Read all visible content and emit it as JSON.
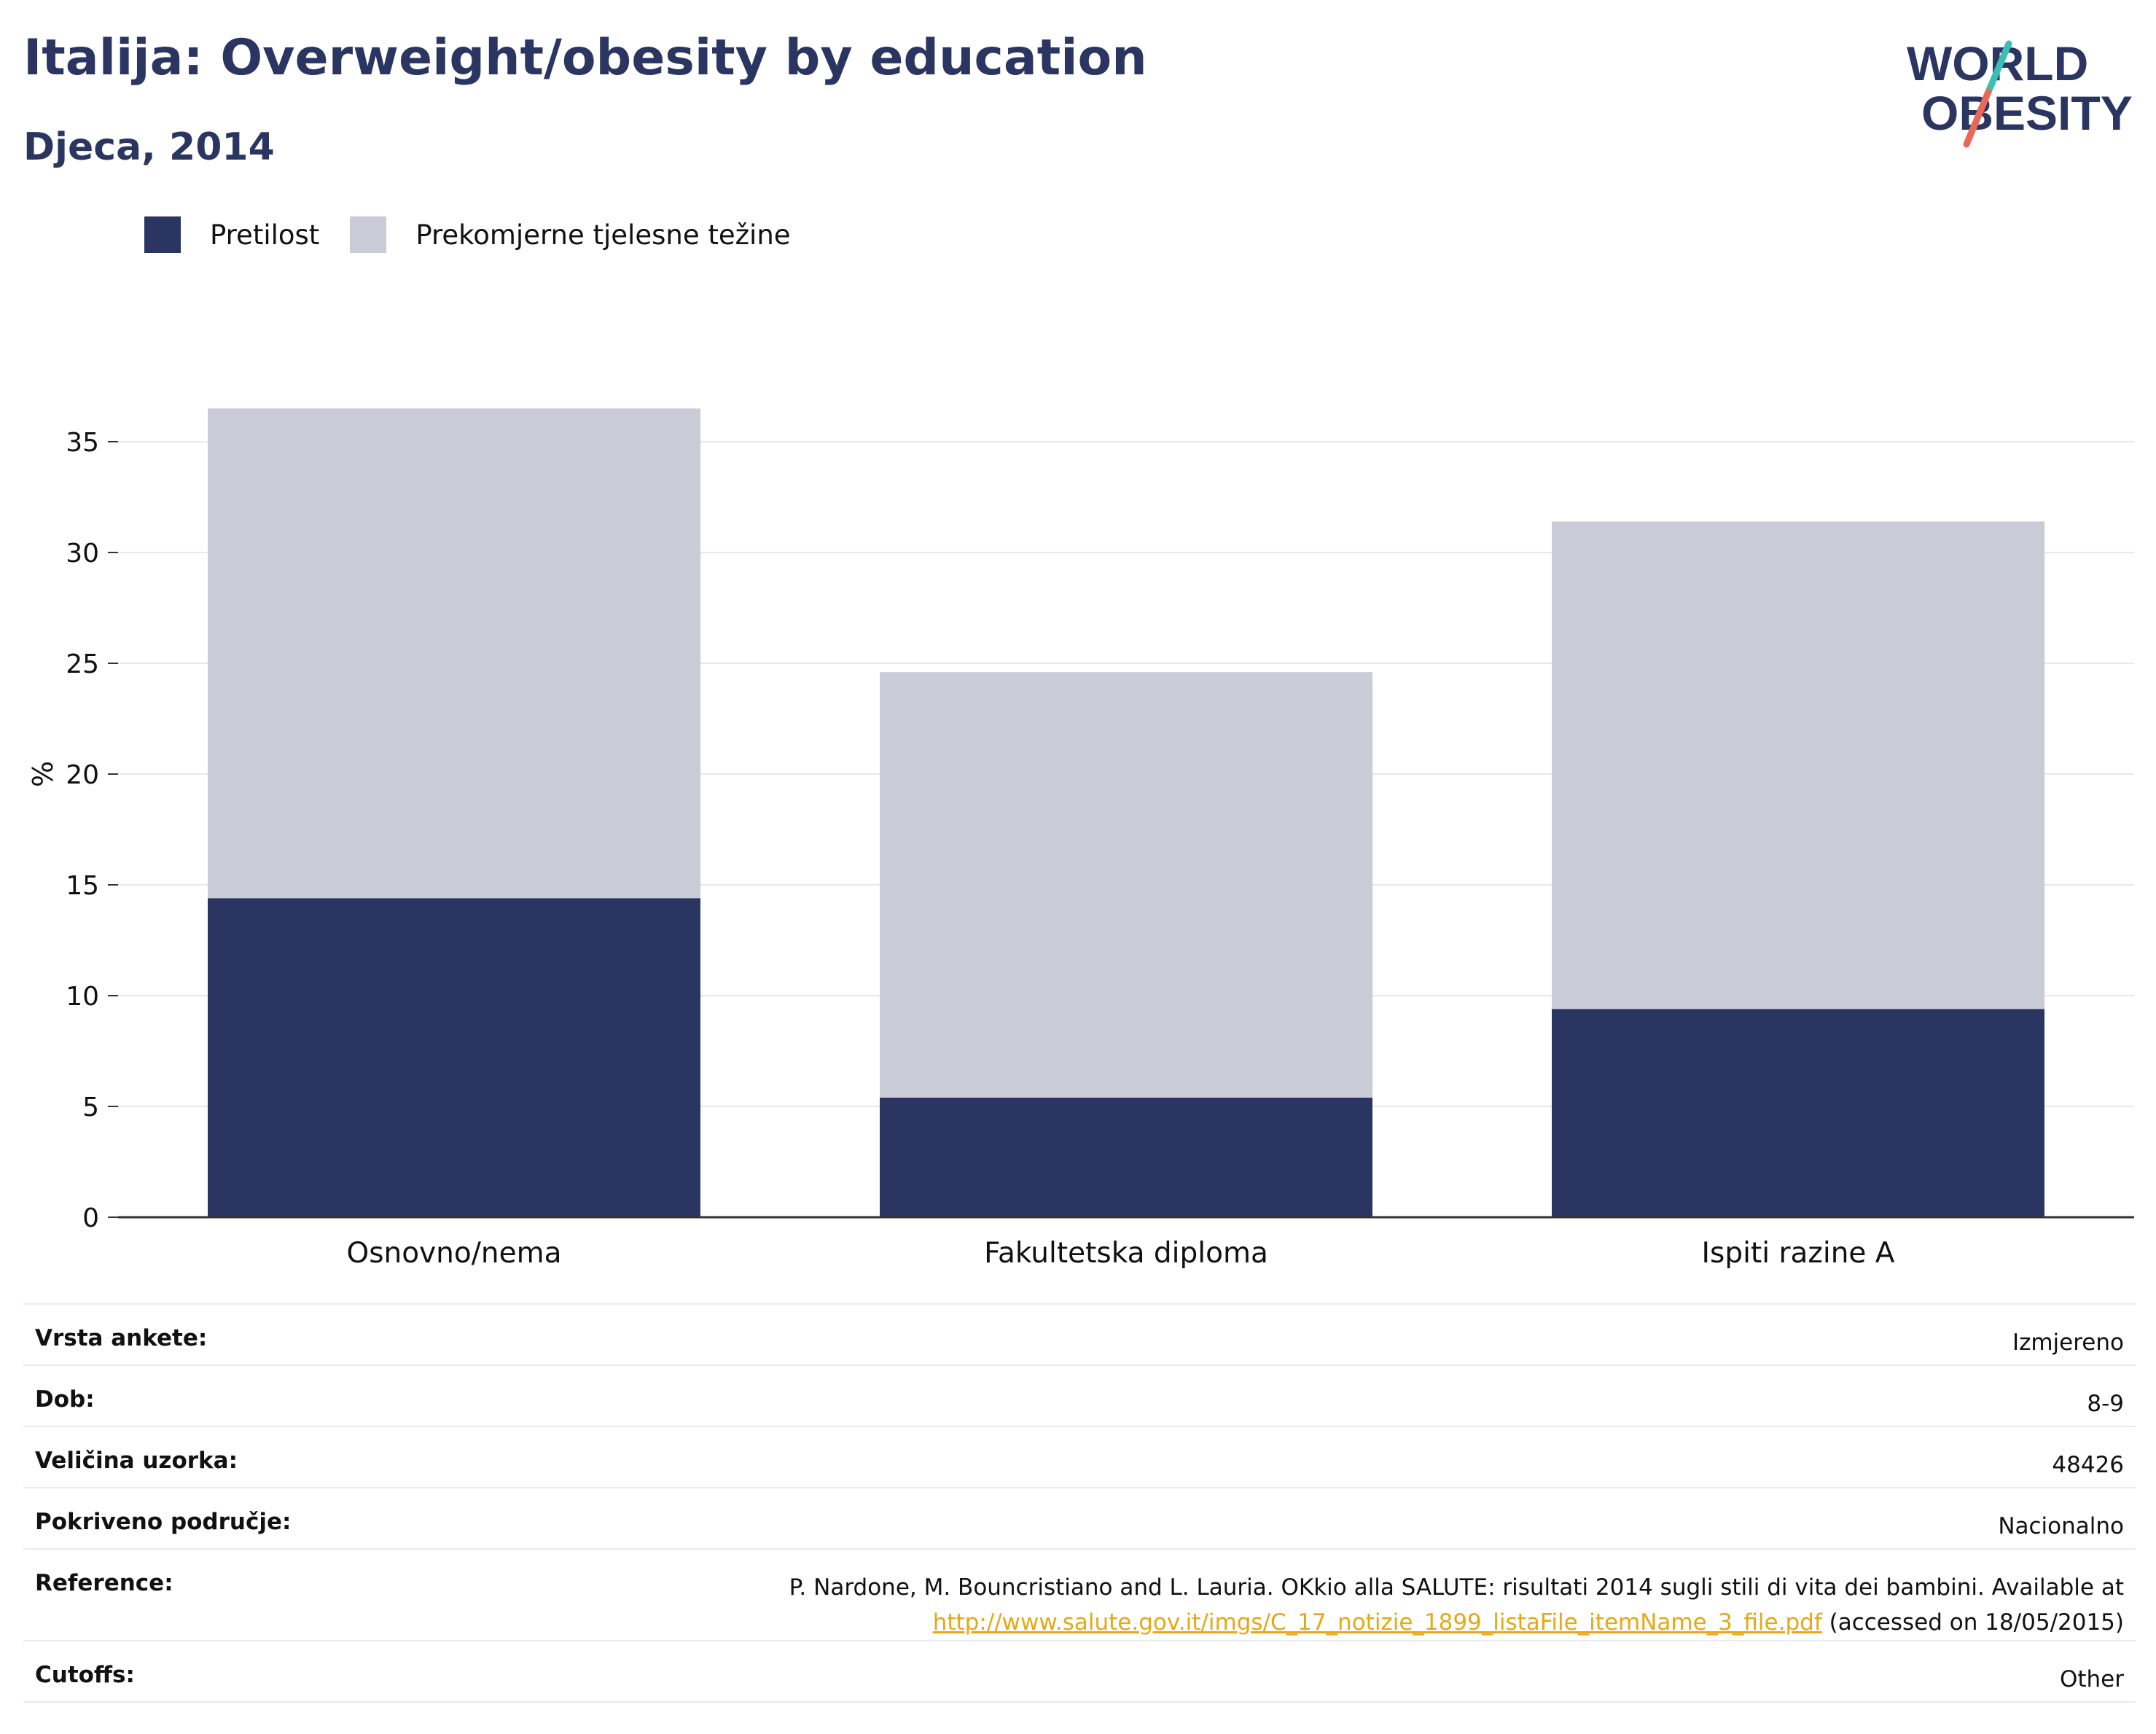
{
  "header": {
    "title": "Italija: Overweight/obesity by education",
    "subtitle": "Djeca, 2014"
  },
  "logo": {
    "line1": "WORLD",
    "line2": "OBESITY"
  },
  "colors": {
    "obesity": "#2a3661",
    "overweight": "#c9cbd6",
    "title": "#2a3661",
    "link": "#e6a817",
    "logo_teal": "#3bbfb4",
    "logo_coral": "#e8685a"
  },
  "chart_data": {
    "type": "bar",
    "stacked": true,
    "categories": [
      "Osnovno/nema",
      "Fakultetska diploma",
      "Ispiti razine A"
    ],
    "series": [
      {
        "name": "Pretilost",
        "color": "#2a3661",
        "values": [
          14.4,
          5.4,
          9.4
        ]
      },
      {
        "name": "Prekomjerne tjelesne težine",
        "color": "#c9cbd6",
        "values": [
          22.1,
          19.2,
          22.0
        ]
      }
    ],
    "ylabel": "%",
    "ylim": [
      0,
      40
    ],
    "yticks": [
      0,
      5,
      10,
      15,
      20,
      25,
      30,
      35
    ],
    "grid": true,
    "legend_position": "top-left"
  },
  "info": {
    "rows": [
      {
        "label": "Vrsta ankete:",
        "value": "Izmjereno"
      },
      {
        "label": "Dob:",
        "value": "8-9"
      },
      {
        "label": "Veličina uzorka:",
        "value": "48426"
      },
      {
        "label": "Pokriveno područje:",
        "value": "Nacionalno"
      }
    ],
    "reference": {
      "label": "Reference:",
      "text_before": "P. Nardone, M. Bouncristiano and L. Lauria. OKkio alla SALUTE: risultati 2014 sugli stili di vita dei bambini. Available at",
      "link": "http://www.salute.gov.it/imgs/C_17_notizie_1899_listaFile_itemName_3_file.pdf",
      "text_after": " (accessed on 18/05/2015)"
    },
    "cutoffs": {
      "label": "Cutoffs:",
      "value": "Other"
    }
  }
}
